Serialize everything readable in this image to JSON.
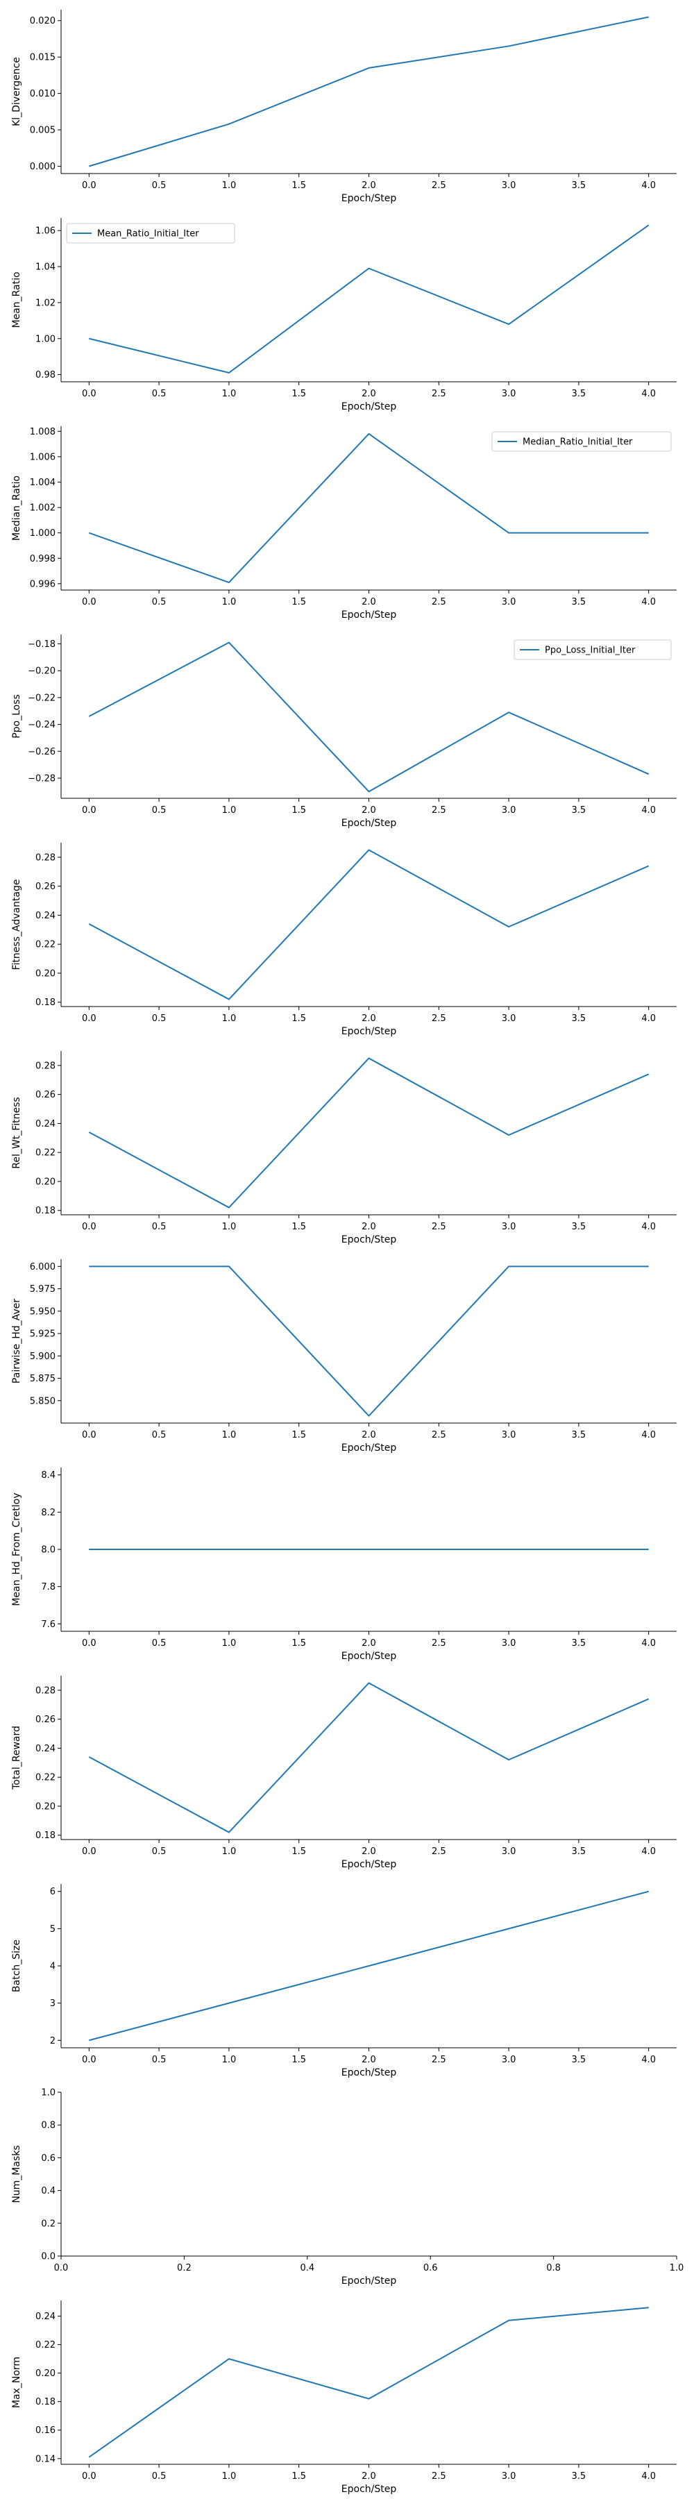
{
  "colors": {
    "line": "#1f77b4",
    "axis": "#000000",
    "legend_border": "#cccccc"
  },
  "chart_data": [
    {
      "type": "line",
      "xlabel": "Epoch/Step",
      "ylabel": "Kl_Divergence",
      "x": [
        0,
        1,
        2,
        3,
        4
      ],
      "y": [
        0.0,
        0.0058,
        0.0135,
        0.0165,
        0.0205
      ],
      "xlim": [
        -0.2,
        4.2
      ],
      "ylim": [
        -0.001,
        0.0215
      ],
      "xticks": [
        0,
        0.5,
        1,
        1.5,
        2,
        2.5,
        3,
        3.5,
        4
      ],
      "xtick_labels": [
        "0.0",
        "0.5",
        "1.0",
        "1.5",
        "2.0",
        "2.5",
        "3.0",
        "3.5",
        "4.0"
      ],
      "yticks": [
        0,
        0.005,
        0.01,
        0.015,
        0.02
      ],
      "ytick_labels": [
        "0.000",
        "0.005",
        "0.010",
        "0.015",
        "0.020"
      ],
      "legend": "",
      "legend_loc": "none"
    },
    {
      "type": "line",
      "xlabel": "Epoch/Step",
      "ylabel": "Mean_Ratio",
      "x": [
        0,
        1,
        2,
        3,
        4
      ],
      "y": [
        1.0,
        0.981,
        1.039,
        1.008,
        1.063
      ],
      "xlim": [
        -0.2,
        4.2
      ],
      "ylim": [
        0.976,
        1.067
      ],
      "xticks": [
        0,
        0.5,
        1,
        1.5,
        2,
        2.5,
        3,
        3.5,
        4
      ],
      "xtick_labels": [
        "0.0",
        "0.5",
        "1.0",
        "1.5",
        "2.0",
        "2.5",
        "3.0",
        "3.5",
        "4.0"
      ],
      "yticks": [
        0.98,
        1.0,
        1.02,
        1.04,
        1.06
      ],
      "ytick_labels": [
        "0.98",
        "1.00",
        "1.02",
        "1.04",
        "1.06"
      ],
      "legend": "Mean_Ratio_Initial_Iter",
      "legend_loc": "top-left"
    },
    {
      "type": "line",
      "xlabel": "Epoch/Step",
      "ylabel": "Median_Ratio",
      "x": [
        0,
        1,
        2,
        3,
        4
      ],
      "y": [
        1.0,
        0.9961,
        1.0078,
        1.0,
        1.0
      ],
      "xlim": [
        -0.2,
        4.2
      ],
      "ylim": [
        0.9955,
        1.0084
      ],
      "xticks": [
        0,
        0.5,
        1,
        1.5,
        2,
        2.5,
        3,
        3.5,
        4
      ],
      "xtick_labels": [
        "0.0",
        "0.5",
        "1.0",
        "1.5",
        "2.0",
        "2.5",
        "3.0",
        "3.5",
        "4.0"
      ],
      "yticks": [
        0.996,
        0.998,
        1.0,
        1.002,
        1.004,
        1.006,
        1.008
      ],
      "ytick_labels": [
        "0.996",
        "0.998",
        "1.000",
        "1.002",
        "1.004",
        "1.006",
        "1.008"
      ],
      "legend": "Median_Ratio_Initial_Iter",
      "legend_loc": "top-right"
    },
    {
      "type": "line",
      "xlabel": "Epoch/Step",
      "ylabel": "Ppo_Loss",
      "x": [
        0,
        1,
        2,
        3,
        4
      ],
      "y": [
        -0.234,
        -0.179,
        -0.29,
        -0.231,
        -0.277
      ],
      "xlim": [
        -0.2,
        4.2
      ],
      "ylim": [
        -0.295,
        -0.173
      ],
      "xticks": [
        0,
        0.5,
        1,
        1.5,
        2,
        2.5,
        3,
        3.5,
        4
      ],
      "xtick_labels": [
        "0.0",
        "0.5",
        "1.0",
        "1.5",
        "2.0",
        "2.5",
        "3.0",
        "3.5",
        "4.0"
      ],
      "yticks": [
        -0.28,
        -0.26,
        -0.24,
        -0.22,
        -0.2,
        -0.18
      ],
      "ytick_labels": [
        "−0.28",
        "−0.26",
        "−0.24",
        "−0.22",
        "−0.20",
        "−0.18"
      ],
      "legend": "Ppo_Loss_Initial_Iter",
      "legend_loc": "top-right"
    },
    {
      "type": "line",
      "xlabel": "Epoch/Step",
      "ylabel": "Fitness_Advantage",
      "x": [
        0,
        1,
        2,
        3,
        4
      ],
      "y": [
        0.234,
        0.182,
        0.285,
        0.232,
        0.274
      ],
      "xlim": [
        -0.2,
        4.2
      ],
      "ylim": [
        0.177,
        0.29
      ],
      "xticks": [
        0,
        0.5,
        1,
        1.5,
        2,
        2.5,
        3,
        3.5,
        4
      ],
      "xtick_labels": [
        "0.0",
        "0.5",
        "1.0",
        "1.5",
        "2.0",
        "2.5",
        "3.0",
        "3.5",
        "4.0"
      ],
      "yticks": [
        0.18,
        0.2,
        0.22,
        0.24,
        0.26,
        0.28
      ],
      "ytick_labels": [
        "0.18",
        "0.20",
        "0.22",
        "0.24",
        "0.26",
        "0.28"
      ],
      "legend": "",
      "legend_loc": "none"
    },
    {
      "type": "line",
      "xlabel": "Epoch/Step",
      "ylabel": "Rel_Wt_Fitness",
      "x": [
        0,
        1,
        2,
        3,
        4
      ],
      "y": [
        0.234,
        0.182,
        0.285,
        0.232,
        0.274
      ],
      "xlim": [
        -0.2,
        4.2
      ],
      "ylim": [
        0.177,
        0.29
      ],
      "xticks": [
        0,
        0.5,
        1,
        1.5,
        2,
        2.5,
        3,
        3.5,
        4
      ],
      "xtick_labels": [
        "0.0",
        "0.5",
        "1.0",
        "1.5",
        "2.0",
        "2.5",
        "3.0",
        "3.5",
        "4.0"
      ],
      "yticks": [
        0.18,
        0.2,
        0.22,
        0.24,
        0.26,
        0.28
      ],
      "ytick_labels": [
        "0.18",
        "0.20",
        "0.22",
        "0.24",
        "0.26",
        "0.28"
      ],
      "legend": "",
      "legend_loc": "none"
    },
    {
      "type": "line",
      "xlabel": "Epoch/Step",
      "ylabel": "Pairwise_Hd_Aver",
      "x": [
        0,
        1,
        2,
        3,
        4
      ],
      "y": [
        6.0,
        6.0,
        5.833,
        6.0,
        6.0
      ],
      "xlim": [
        -0.2,
        4.2
      ],
      "ylim": [
        5.825,
        6.008
      ],
      "xticks": [
        0,
        0.5,
        1,
        1.5,
        2,
        2.5,
        3,
        3.5,
        4
      ],
      "xtick_labels": [
        "0.0",
        "0.5",
        "1.0",
        "1.5",
        "2.0",
        "2.5",
        "3.0",
        "3.5",
        "4.0"
      ],
      "yticks": [
        5.85,
        5.875,
        5.9,
        5.925,
        5.95,
        5.975,
        6.0
      ],
      "ytick_labels": [
        "5.850",
        "5.875",
        "5.900",
        "5.925",
        "5.950",
        "5.975",
        "6.000"
      ],
      "legend": "",
      "legend_loc": "none"
    },
    {
      "type": "line",
      "xlabel": "Epoch/Step",
      "ylabel": "Mean_Hd_From_Cretloy",
      "x": [
        0,
        1,
        2,
        3,
        4
      ],
      "y": [
        8.0,
        8.0,
        8.0,
        8.0,
        8.0
      ],
      "xlim": [
        -0.2,
        4.2
      ],
      "ylim": [
        7.56,
        8.44
      ],
      "xticks": [
        0,
        0.5,
        1,
        1.5,
        2,
        2.5,
        3,
        3.5,
        4
      ],
      "xtick_labels": [
        "0.0",
        "0.5",
        "1.0",
        "1.5",
        "2.0",
        "2.5",
        "3.0",
        "3.5",
        "4.0"
      ],
      "yticks": [
        7.6,
        7.8,
        8.0,
        8.2,
        8.4
      ],
      "ytick_labels": [
        "7.6",
        "7.8",
        "8.0",
        "8.2",
        "8.4"
      ],
      "legend": "",
      "legend_loc": "none"
    },
    {
      "type": "line",
      "xlabel": "Epoch/Step",
      "ylabel": "Total_Reward",
      "x": [
        0,
        1,
        2,
        3,
        4
      ],
      "y": [
        0.234,
        0.182,
        0.285,
        0.232,
        0.274
      ],
      "xlim": [
        -0.2,
        4.2
      ],
      "ylim": [
        0.177,
        0.29
      ],
      "xticks": [
        0,
        0.5,
        1,
        1.5,
        2,
        2.5,
        3,
        3.5,
        4
      ],
      "xtick_labels": [
        "0.0",
        "0.5",
        "1.0",
        "1.5",
        "2.0",
        "2.5",
        "3.0",
        "3.5",
        "4.0"
      ],
      "yticks": [
        0.18,
        0.2,
        0.22,
        0.24,
        0.26,
        0.28
      ],
      "ytick_labels": [
        "0.18",
        "0.20",
        "0.22",
        "0.24",
        "0.26",
        "0.28"
      ],
      "legend": "",
      "legend_loc": "none"
    },
    {
      "type": "line",
      "xlabel": "Epoch/Step",
      "ylabel": "Batch_Size",
      "x": [
        0,
        1,
        2,
        3,
        4
      ],
      "y": [
        2,
        3,
        4,
        5,
        6
      ],
      "xlim": [
        -0.2,
        4.2
      ],
      "ylim": [
        1.8,
        6.2
      ],
      "xticks": [
        0,
        0.5,
        1,
        1.5,
        2,
        2.5,
        3,
        3.5,
        4
      ],
      "xtick_labels": [
        "0.0",
        "0.5",
        "1.0",
        "1.5",
        "2.0",
        "2.5",
        "3.0",
        "3.5",
        "4.0"
      ],
      "yticks": [
        2,
        3,
        4,
        5,
        6
      ],
      "ytick_labels": [
        "2",
        "3",
        "4",
        "5",
        "6"
      ],
      "legend": "",
      "legend_loc": "none"
    },
    {
      "type": "line",
      "xlabel": "Epoch/Step",
      "ylabel": "Num_Masks",
      "x": [],
      "y": [],
      "xlim": [
        0,
        1
      ],
      "ylim": [
        0,
        1
      ],
      "xticks": [
        0,
        0.2,
        0.4,
        0.6,
        0.8,
        1.0
      ],
      "xtick_labels": [
        "0.0",
        "0.2",
        "0.4",
        "0.6",
        "0.8",
        "1.0"
      ],
      "yticks": [
        0,
        0.2,
        0.4,
        0.6,
        0.8,
        1.0
      ],
      "ytick_labels": [
        "0.0",
        "0.2",
        "0.4",
        "0.6",
        "0.8",
        "1.0"
      ],
      "legend": "",
      "legend_loc": "none"
    },
    {
      "type": "line",
      "xlabel": "Epoch/Step",
      "ylabel": "Max_Norm",
      "x": [
        0,
        1,
        2,
        3,
        4
      ],
      "y": [
        0.141,
        0.21,
        0.182,
        0.237,
        0.246
      ],
      "xlim": [
        -0.2,
        4.2
      ],
      "ylim": [
        0.136,
        0.251
      ],
      "xticks": [
        0,
        0.5,
        1,
        1.5,
        2,
        2.5,
        3,
        3.5,
        4
      ],
      "xtick_labels": [
        "0.0",
        "0.5",
        "1.0",
        "1.5",
        "2.0",
        "2.5",
        "3.0",
        "3.5",
        "4.0"
      ],
      "yticks": [
        0.14,
        0.16,
        0.18,
        0.2,
        0.22,
        0.24
      ],
      "ytick_labels": [
        "0.14",
        "0.16",
        "0.18",
        "0.20",
        "0.22",
        "0.24"
      ],
      "legend": "",
      "legend_loc": "none"
    }
  ]
}
